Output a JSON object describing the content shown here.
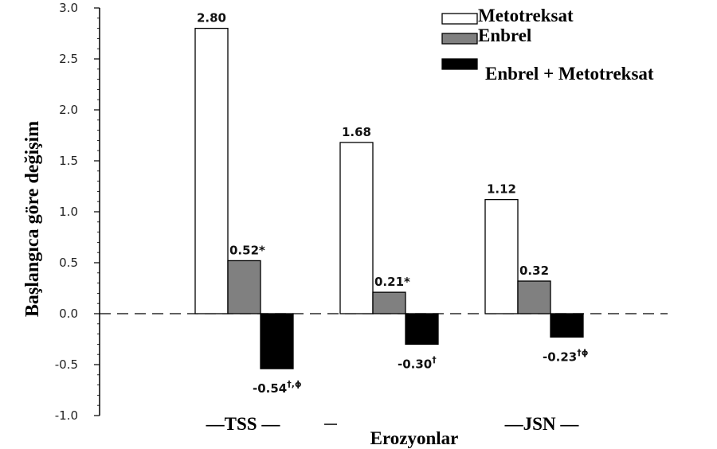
{
  "chart_data": {
    "type": "bar",
    "ylabel": "Başlangıca göre değişim",
    "ylim": [
      -1.0,
      3.0
    ],
    "yticks": [
      "3.0",
      "2.5",
      "2.0",
      "1.5",
      "1.0",
      "0.5",
      "0.0",
      "-0.5",
      "-1.0"
    ],
    "categories": [
      "TSS",
      "Erozyonlar",
      "JSN"
    ],
    "series": [
      {
        "name": "Metotreksat",
        "color": "#ffffff",
        "values": [
          2.8,
          1.68,
          1.12
        ],
        "labels": [
          "2.80",
          "1.68",
          "1.12"
        ],
        "sups": [
          "",
          "",
          ""
        ]
      },
      {
        "name": "Enbrel",
        "color": "#808080",
        "values": [
          0.52,
          0.21,
          0.32
        ],
        "labels": [
          "0.52*",
          "0.21*",
          "0.32"
        ],
        "sups": [
          "",
          "",
          ""
        ]
      },
      {
        "name": "Enbrel + Metotreksat",
        "color": "#000000",
        "values": [
          -0.54,
          -0.3,
          -0.23
        ],
        "labels": [
          "-0.54",
          "-0.30",
          "-0.23"
        ],
        "sups": [
          "†,ɸ",
          "†",
          "†ɸ"
        ]
      }
    ],
    "category_labels": [
      "—TSS —",
      "Erozyonlar",
      "—JSN —"
    ],
    "grid": false,
    "legend_position": "top-right"
  }
}
